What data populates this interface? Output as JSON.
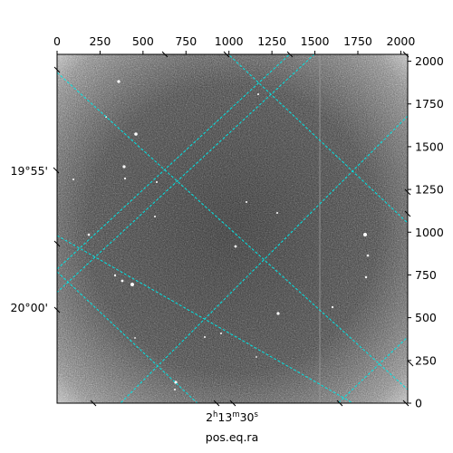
{
  "chart_data": {
    "type": "heatmap",
    "title": "",
    "x_pixel_axis": {
      "range": [
        0,
        2040
      ],
      "ticks": [
        0,
        250,
        500,
        750,
        1000,
        1250,
        1500,
        1750,
        2000
      ]
    },
    "y_pixel_axis": {
      "range": [
        0,
        2040
      ],
      "ticks": [
        0,
        250,
        500,
        750,
        1000,
        1250,
        1500,
        1750,
        2000
      ]
    },
    "ra_axis": {
      "label": "pos.eq.ra",
      "tick_labels": [
        {
          "text": "2h13m30s",
          "base": "2",
          "h": "h",
          "m_val": "13",
          "m": "m",
          "s_val": "30",
          "s": "s"
        }
      ]
    },
    "dec_axis": {
      "tick_labels": [
        "19°55'",
        "20°00'"
      ]
    },
    "grid": true,
    "grid_color": "#00e5e5",
    "colormap": "gray"
  }
}
